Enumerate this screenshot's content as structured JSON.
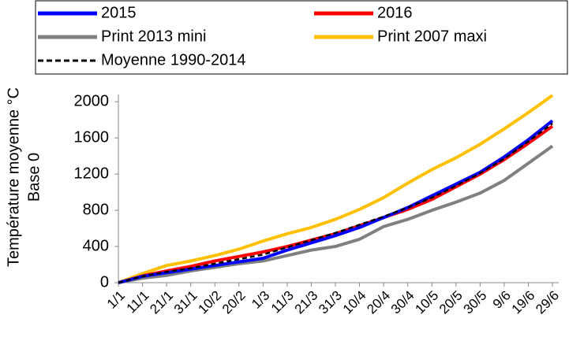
{
  "chart_data": {
    "type": "line",
    "ylabel": [
      "Température moyenne °C",
      "Base 0"
    ],
    "categories": [
      "1/1",
      "11/1",
      "21/1",
      "31/1",
      "10/2",
      "20/2",
      "1/3",
      "11/3",
      "21/3",
      "31/3",
      "10/4",
      "20/4",
      "30/4",
      "10/5",
      "20/5",
      "30/5",
      "9/6",
      "19/6",
      "29/6"
    ],
    "series": [
      {
        "name": "2015",
        "color": "#0000ff",
        "values": [
          0,
          70,
          110,
          150,
          190,
          230,
          270,
          360,
          440,
          520,
          610,
          720,
          830,
          960,
          1090,
          1220,
          1390,
          1580,
          1790
        ]
      },
      {
        "name": "2016",
        "color": "#ff0000",
        "values": [
          0,
          75,
          130,
          180,
          240,
          290,
          340,
          400,
          470,
          540,
          630,
          720,
          810,
          920,
          1060,
          1200,
          1360,
          1540,
          1730
        ]
      },
      {
        "name": "Print 2013 mini",
        "color": "#808080",
        "values": [
          0,
          50,
          80,
          130,
          170,
          210,
          240,
          300,
          360,
          400,
          480,
          620,
          700,
          800,
          890,
          990,
          1130,
          1320,
          1510
        ]
      },
      {
        "name": "Print 2007 maxi",
        "color": "#ffc000",
        "values": [
          0,
          100,
          190,
          240,
          300,
          370,
          460,
          540,
          610,
          700,
          810,
          940,
          1100,
          1250,
          1380,
          1530,
          1700,
          1880,
          2070
        ]
      },
      {
        "name": "Moyenne 1990-2014",
        "color": "#000000",
        "dashed": true,
        "values": [
          0,
          70,
          120,
          160,
          210,
          260,
          310,
          390,
          470,
          550,
          640,
          730,
          830,
          940,
          1070,
          1210,
          1370,
          1560,
          1760
        ]
      }
    ],
    "ylim": [
      0,
      2080
    ],
    "yticks": [
      0,
      400,
      800,
      1200,
      1600,
      2000
    ],
    "grid": false
  }
}
